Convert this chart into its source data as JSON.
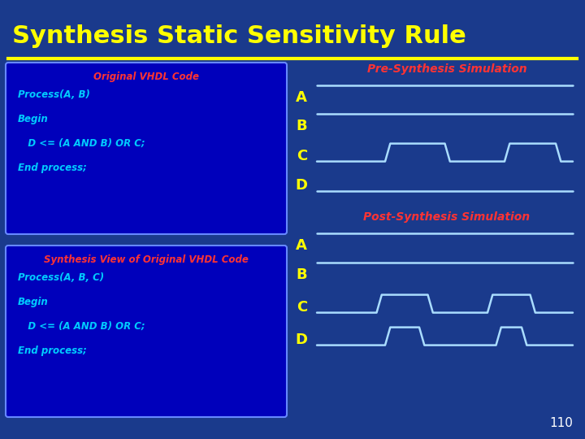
{
  "background_color": "#1a3a8c",
  "title": "Synthesis Static Sensitivity Rule",
  "title_color": "#ffff00",
  "title_fontsize": 22,
  "separator_color": "#ffff00",
  "slide_number": "110",
  "slide_number_color": "#ffffff",
  "box1_facecolor": "#0000bb",
  "box1_edgecolor": "#6688ff",
  "box1_title": "Original VHDL Code",
  "box1_title_color": "#ff3333",
  "box1_lines": [
    "Process(A, B)",
    "Begin",
    "   D <= (A AND B) OR C;",
    "End process;"
  ],
  "box1_line_color": "#00ccff",
  "box2_facecolor": "#0000bb",
  "box2_edgecolor": "#6688ff",
  "box2_title": "Synthesis View of Original VHDL Code",
  "box2_title_color": "#ff3333",
  "box2_lines": [
    "Process(A, B, C)",
    "Begin",
    "   D <= (A AND B) OR C;",
    "End process;"
  ],
  "box2_line_color": "#00ccff",
  "pre_sim_title": "Pre-Synthesis Simulation",
  "pre_sim_color": "#ff3333",
  "post_sim_title": "Post-Synthesis Simulation",
  "post_sim_color": "#ff3333",
  "signal_color": "#aaddff",
  "signal_label_color": "#ffff00",
  "signal_label_fontsize": 13,
  "signal_linewidth": 1.8,
  "pre_A": [
    1,
    1,
    1,
    1,
    1,
    1,
    1,
    1,
    1,
    1,
    1,
    1,
    1,
    1,
    1,
    1,
    1,
    1,
    1,
    1,
    1,
    1,
    1,
    1,
    1,
    1,
    1,
    1,
    1,
    1
  ],
  "pre_B": [
    1,
    1,
    1,
    1,
    1,
    1,
    1,
    1,
    1,
    1,
    1,
    1,
    1,
    1,
    1,
    1,
    1,
    1,
    1,
    1,
    1,
    1,
    1,
    1,
    1,
    1,
    1,
    1,
    1,
    1
  ],
  "pre_C": [
    0,
    0,
    0,
    0,
    0,
    0,
    0,
    0,
    "r",
    1,
    1,
    1,
    1,
    1,
    1,
    "f",
    0,
    0,
    0,
    0,
    0,
    0,
    "r",
    1,
    1,
    1,
    1,
    1,
    "f",
    0
  ],
  "pre_D": [
    0,
    0,
    0,
    0,
    0,
    0,
    0,
    0,
    0,
    0,
    0,
    0,
    0,
    0,
    0,
    0,
    0,
    0,
    0,
    0,
    0,
    0,
    0,
    0,
    0,
    0,
    0,
    0,
    0,
    0
  ],
  "post_A": [
    1,
    1,
    1,
    1,
    1,
    1,
    1,
    1,
    1,
    1,
    1,
    1,
    1,
    1,
    1,
    1,
    1,
    1,
    1,
    1,
    1,
    1,
    1,
    1,
    1,
    1,
    1,
    1,
    1,
    1
  ],
  "post_B": [
    1,
    1,
    1,
    1,
    1,
    1,
    1,
    1,
    1,
    1,
    1,
    1,
    1,
    1,
    1,
    1,
    1,
    1,
    1,
    1,
    1,
    1,
    1,
    1,
    1,
    1,
    1,
    1,
    1,
    1
  ],
  "post_C": [
    0,
    0,
    0,
    0,
    0,
    0,
    0,
    "r",
    1,
    1,
    1,
    1,
    1,
    "f",
    0,
    0,
    0,
    0,
    0,
    0,
    "r",
    1,
    1,
    1,
    1,
    "f",
    0,
    0,
    0,
    0
  ],
  "post_D": [
    0,
    0,
    0,
    0,
    0,
    0,
    0,
    0,
    "r",
    1,
    1,
    1,
    "f",
    0,
    0,
    0,
    0,
    0,
    0,
    0,
    0,
    "r",
    1,
    1,
    "f",
    0,
    0,
    0,
    0,
    0
  ]
}
